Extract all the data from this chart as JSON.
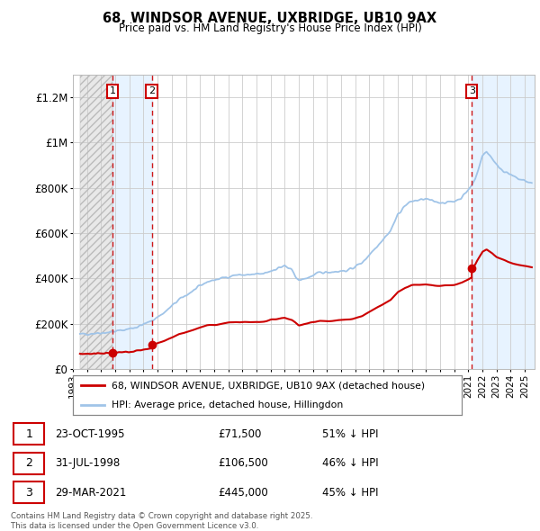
{
  "title": "68, WINDSOR AVENUE, UXBRIDGE, UB10 9AX",
  "subtitle": "Price paid vs. HM Land Registry's House Price Index (HPI)",
  "ylim": [
    0,
    1300000
  ],
  "xlim_start": 1993.5,
  "xlim_end": 2025.7,
  "purchases": [
    {
      "num": 1,
      "date": "23-OCT-1995",
      "price": 71500,
      "year": 1995.8,
      "pct": "51% ↓ HPI"
    },
    {
      "num": 2,
      "date": "31-JUL-1998",
      "price": 106500,
      "year": 1998.58,
      "pct": "46% ↓ HPI"
    },
    {
      "num": 3,
      "date": "29-MAR-2021",
      "price": 445000,
      "year": 2021.25,
      "pct": "45% ↓ HPI"
    }
  ],
  "legend_property": "68, WINDSOR AVENUE, UXBRIDGE, UB10 9AX (detached house)",
  "legend_hpi": "HPI: Average price, detached house, Hillingdon",
  "footer": "Contains HM Land Registry data © Crown copyright and database right 2025.\nThis data is licensed under the Open Government Licence v3.0.",
  "property_color": "#cc0000",
  "hpi_color": "#a0c4e8",
  "background_color": "#ffffff"
}
